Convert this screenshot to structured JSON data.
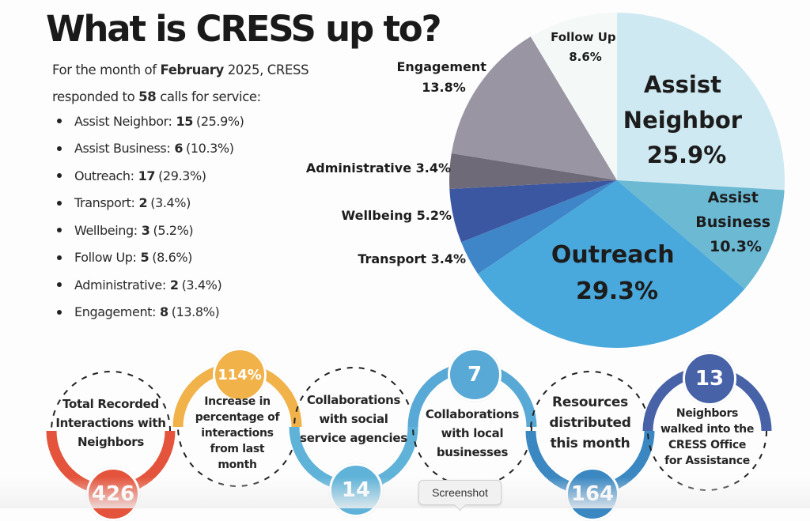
{
  "header": {
    "title": "What is CRESS up to?",
    "intro_prefix": "For the month of",
    "intro_month": "February",
    "intro_mid": "2025, CRESS",
    "intro_line2_prefix": "responded to",
    "intro_calls": "58",
    "intro_line2_suffix": "calls for service:"
  },
  "categories": [
    {
      "label": "Assist Neighbor:",
      "count": "15",
      "pct": "(25.9%)"
    },
    {
      "label": "Assist Business:",
      "count": "6",
      "pct": "(10.3%)"
    },
    {
      "label": "Outreach:",
      "count": "17",
      "pct": "(29.3%)"
    },
    {
      "label": "Transport:",
      "count": "2",
      "pct": "(3.4%)"
    },
    {
      "label": "Wellbeing:",
      "count": "3",
      "pct": "(5.2%)"
    },
    {
      "label": "Follow Up:",
      "count": "5",
      "pct": "(8.6%)"
    },
    {
      "label": "Administrative:",
      "count": "2",
      "pct": "(3.4%)"
    },
    {
      "label": "Engagement:",
      "count": "8",
      "pct": "(13.8%)"
    }
  ],
  "chart_data": {
    "type": "pie",
    "title": "",
    "order": "clockwise from top",
    "slices": [
      {
        "name": "Assist Neighbor",
        "value": 25.9,
        "label": "Assist Neighbor 25.9%",
        "color": "#cfe9f2"
      },
      {
        "name": "Assist Business",
        "value": 10.3,
        "label": "Assist Business 10.3%",
        "color": "#6bb9d3"
      },
      {
        "name": "Outreach",
        "value": 29.3,
        "label": "Outreach 29.3%",
        "color": "#4aa9dc"
      },
      {
        "name": "Transport",
        "value": 3.4,
        "label": "Transport 3.4%",
        "color": "#3f86c8"
      },
      {
        "name": "Wellbeing",
        "value": 5.2,
        "label": "Wellbeing 5.2%",
        "color": "#3c57a2"
      },
      {
        "name": "Administrative",
        "value": 3.4,
        "label": "Administrative 3.4%",
        "color": "#6e6a78"
      },
      {
        "name": "Engagement",
        "value": 13.8,
        "label": "Engagement 13.8%",
        "color": "#9995a2"
      },
      {
        "name": "Follow Up",
        "value": 8.6,
        "label": "Follow Up 8.6%",
        "color": "#f4f9f7"
      }
    ],
    "labels": {
      "assist_neighbor": [
        "Assist",
        "Neighbor",
        "25.9%"
      ],
      "assist_business": [
        "Assist",
        "Business",
        "10.3%"
      ],
      "outreach": [
        "Outreach",
        "29.3%"
      ],
      "transport": "Transport 3.4%",
      "wellbeing": "Wellbeing 5.2%",
      "administrative": "Administrative 3.4%",
      "engagement": [
        "Engagement",
        "13.8%"
      ],
      "follow_up": [
        "Follow Up",
        "8.6%"
      ]
    }
  },
  "stats": [
    {
      "value": "426",
      "text": [
        "Total Recorded",
        "Interactions with",
        "Neighbors"
      ],
      "color": "#e4533b"
    },
    {
      "value": "114%",
      "text": [
        "Increase in",
        "percentage of",
        "interactions",
        "from last",
        "month"
      ],
      "color": "#f1b24a"
    },
    {
      "value": "14",
      "text": [
        "Collaborations",
        "with social",
        "service agencies"
      ],
      "color": "#5fb2d8"
    },
    {
      "value": "7",
      "text": [
        "Collaborations",
        "with local",
        "businesses"
      ],
      "color": "#58a9d6"
    },
    {
      "value": "164",
      "text": [
        "Resources",
        "distributed",
        "this month"
      ],
      "color": "#3b87c2"
    },
    {
      "value": "13",
      "text": [
        "Neighbors",
        "walked into the",
        "CRESS Office",
        "for Assistance"
      ],
      "color": "#4862a8"
    }
  ],
  "tooltip": {
    "label": "Screenshot"
  }
}
